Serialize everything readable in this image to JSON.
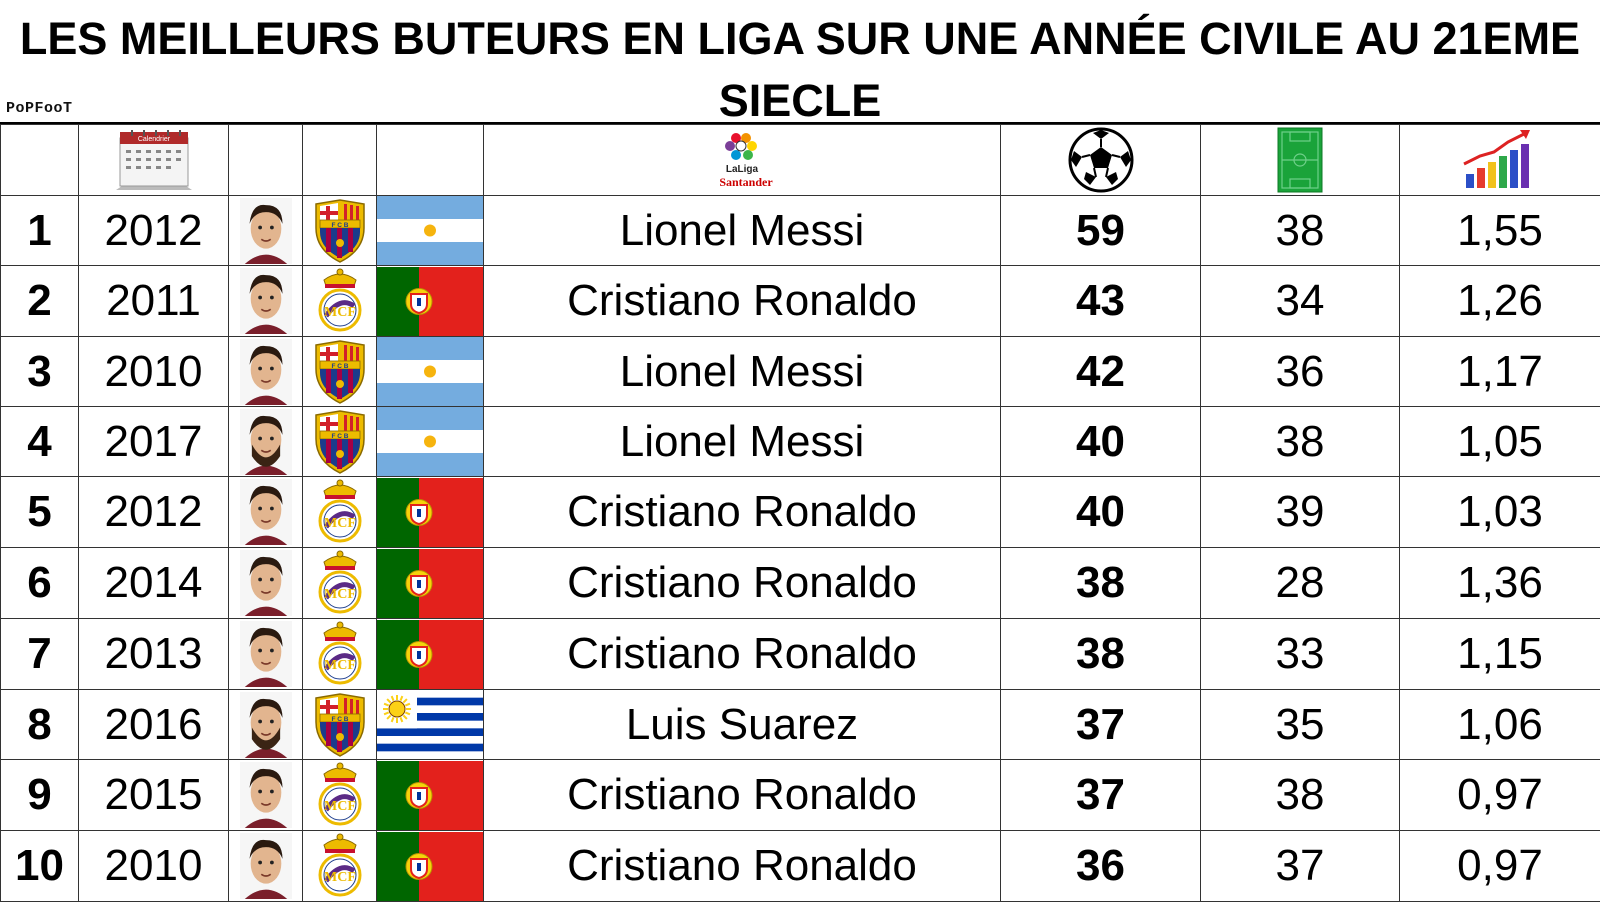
{
  "title": "LES MEILLEURS BUTEURS EN LIGA SUR UNE ANNÉE CIVILE AU 21EME SIECLE",
  "logo": "PoPFooT",
  "header_icons": {
    "calendar": {
      "icon": "calendar-icon",
      "label": "Calendrier"
    },
    "league": {
      "icon": "laliga-logo",
      "line1": "LaLiga",
      "line2": "Santander"
    },
    "goals": {
      "icon": "soccer-ball-icon"
    },
    "matches": {
      "icon": "pitch-icon"
    },
    "ratio": {
      "icon": "bar-chart-trend-icon"
    }
  },
  "colors": {
    "argentina_blue": "#74ACDF",
    "portugal_green": "#006600",
    "portugal_red": "#E3211C",
    "uruguay_blue": "#0038A8",
    "barca_blue": "#1B3C8C",
    "barca_red": "#A50044",
    "gold": "#EDBB00"
  },
  "rows": [
    {
      "rank": "1",
      "year": "2012",
      "player": "Lionel Messi",
      "club": "barcelona",
      "flag": "argentina",
      "goals": "59",
      "matches": "38",
      "ratio": "1,55"
    },
    {
      "rank": "2",
      "year": "2011",
      "player": "Cristiano Ronaldo",
      "club": "real-madrid",
      "flag": "portugal",
      "goals": "43",
      "matches": "34",
      "ratio": "1,26"
    },
    {
      "rank": "3",
      "year": "2010",
      "player": "Lionel Messi",
      "club": "barcelona",
      "flag": "argentina",
      "goals": "42",
      "matches": "36",
      "ratio": "1,17"
    },
    {
      "rank": "4",
      "year": "2017",
      "player": "Lionel Messi",
      "club": "barcelona",
      "flag": "argentina",
      "goals": "40",
      "matches": "38",
      "ratio": "1,05"
    },
    {
      "rank": "5",
      "year": "2012",
      "player": "Cristiano Ronaldo",
      "club": "real-madrid",
      "flag": "portugal",
      "goals": "40",
      "matches": "39",
      "ratio": "1,03"
    },
    {
      "rank": "6",
      "year": "2014",
      "player": "Cristiano Ronaldo",
      "club": "real-madrid",
      "flag": "portugal",
      "goals": "38",
      "matches": "28",
      "ratio": "1,36"
    },
    {
      "rank": "7",
      "year": "2013",
      "player": "Cristiano Ronaldo",
      "club": "real-madrid",
      "flag": "portugal",
      "goals": "38",
      "matches": "33",
      "ratio": "1,15"
    },
    {
      "rank": "8",
      "year": "2016",
      "player": "Luis Suarez",
      "club": "barcelona",
      "flag": "uruguay",
      "goals": "37",
      "matches": "35",
      "ratio": "1,06"
    },
    {
      "rank": "9",
      "year": "2015",
      "player": "Cristiano Ronaldo",
      "club": "real-madrid",
      "flag": "portugal",
      "goals": "37",
      "matches": "38",
      "ratio": "0,97"
    },
    {
      "rank": "10",
      "year": "2010",
      "player": "Cristiano Ronaldo",
      "club": "real-madrid",
      "flag": "portugal",
      "goals": "36",
      "matches": "37",
      "ratio": "0,97"
    }
  ]
}
